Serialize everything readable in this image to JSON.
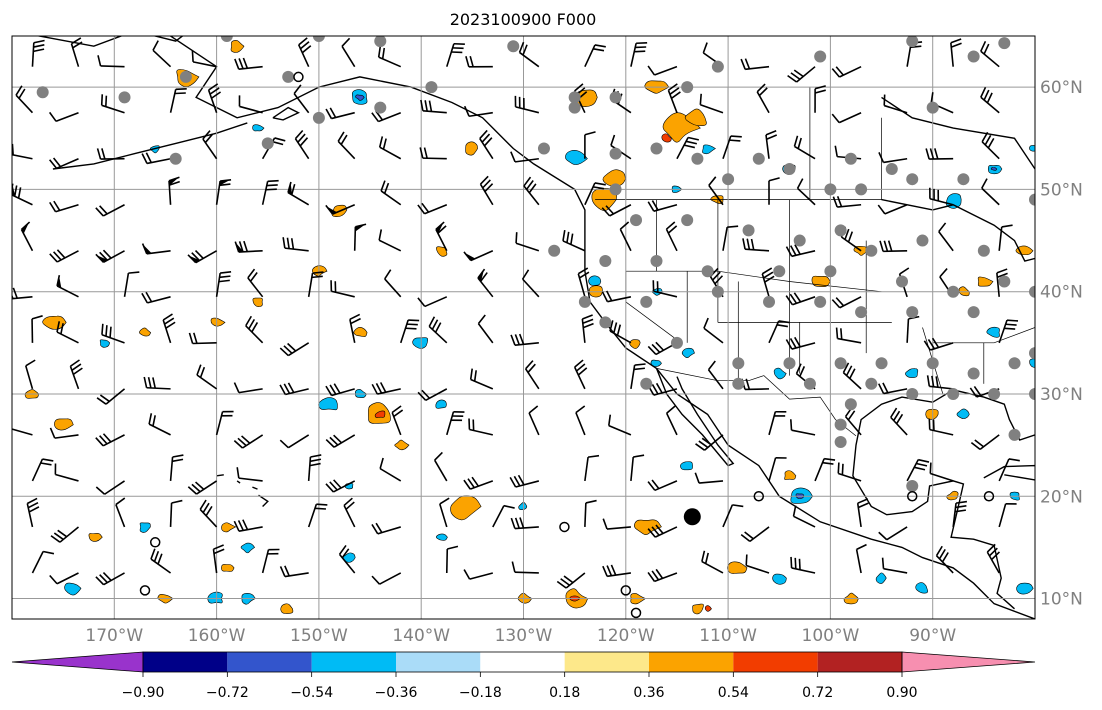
{
  "title": "2023100900 F000",
  "map": {
    "lon_range": [
      -180,
      -80
    ],
    "lat_range": [
      8,
      65
    ],
    "gridline_color": "#999999",
    "lon_labels": [
      {
        "lon": -170,
        "text": "170°W"
      },
      {
        "lon": -160,
        "text": "160°W"
      },
      {
        "lon": -150,
        "text": "150°W"
      },
      {
        "lon": -140,
        "text": "140°W"
      },
      {
        "lon": -130,
        "text": "130°W"
      },
      {
        "lon": -120,
        "text": "120°W"
      },
      {
        "lon": -110,
        "text": "110°W"
      },
      {
        "lon": -100,
        "text": "100°W"
      },
      {
        "lon": -90,
        "text": "90°W"
      }
    ],
    "lat_labels": [
      {
        "lat": 60,
        "text": "60°N"
      },
      {
        "lat": 50,
        "text": "50°N"
      },
      {
        "lat": 40,
        "text": "40°N"
      },
      {
        "lat": 30,
        "text": "30°N"
      },
      {
        "lat": 20,
        "text": "20°N"
      },
      {
        "lat": 10,
        "text": "10°N"
      }
    ]
  },
  "colorbar": {
    "ticks": [
      "−0.90",
      "−0.72",
      "−0.54",
      "−0.36",
      "−0.18",
      "0.18",
      "0.36",
      "0.54",
      "0.72",
      "0.90"
    ],
    "min_extend_color": "#9933cc",
    "max_extend_color": "#f78fb0",
    "colors": [
      "#000088",
      "#3355cc",
      "#00bbf5",
      "#aadcf8",
      "#ffffff",
      "#fde88a",
      "#fba300",
      "#f23d00",
      "#b22222"
    ],
    "icon": "colorbar-legend"
  },
  "fields": {
    "positive_colors": [
      "#fba300",
      "#f23d00"
    ],
    "negative_colors": [
      "#00bbf5",
      "#3355cc"
    ],
    "station_dot_color": "#808080",
    "wind_barb_color": "#000000",
    "icons": [
      "wind-barb-icon",
      "station-dot-icon",
      "empty-circle-icon"
    ]
  }
}
